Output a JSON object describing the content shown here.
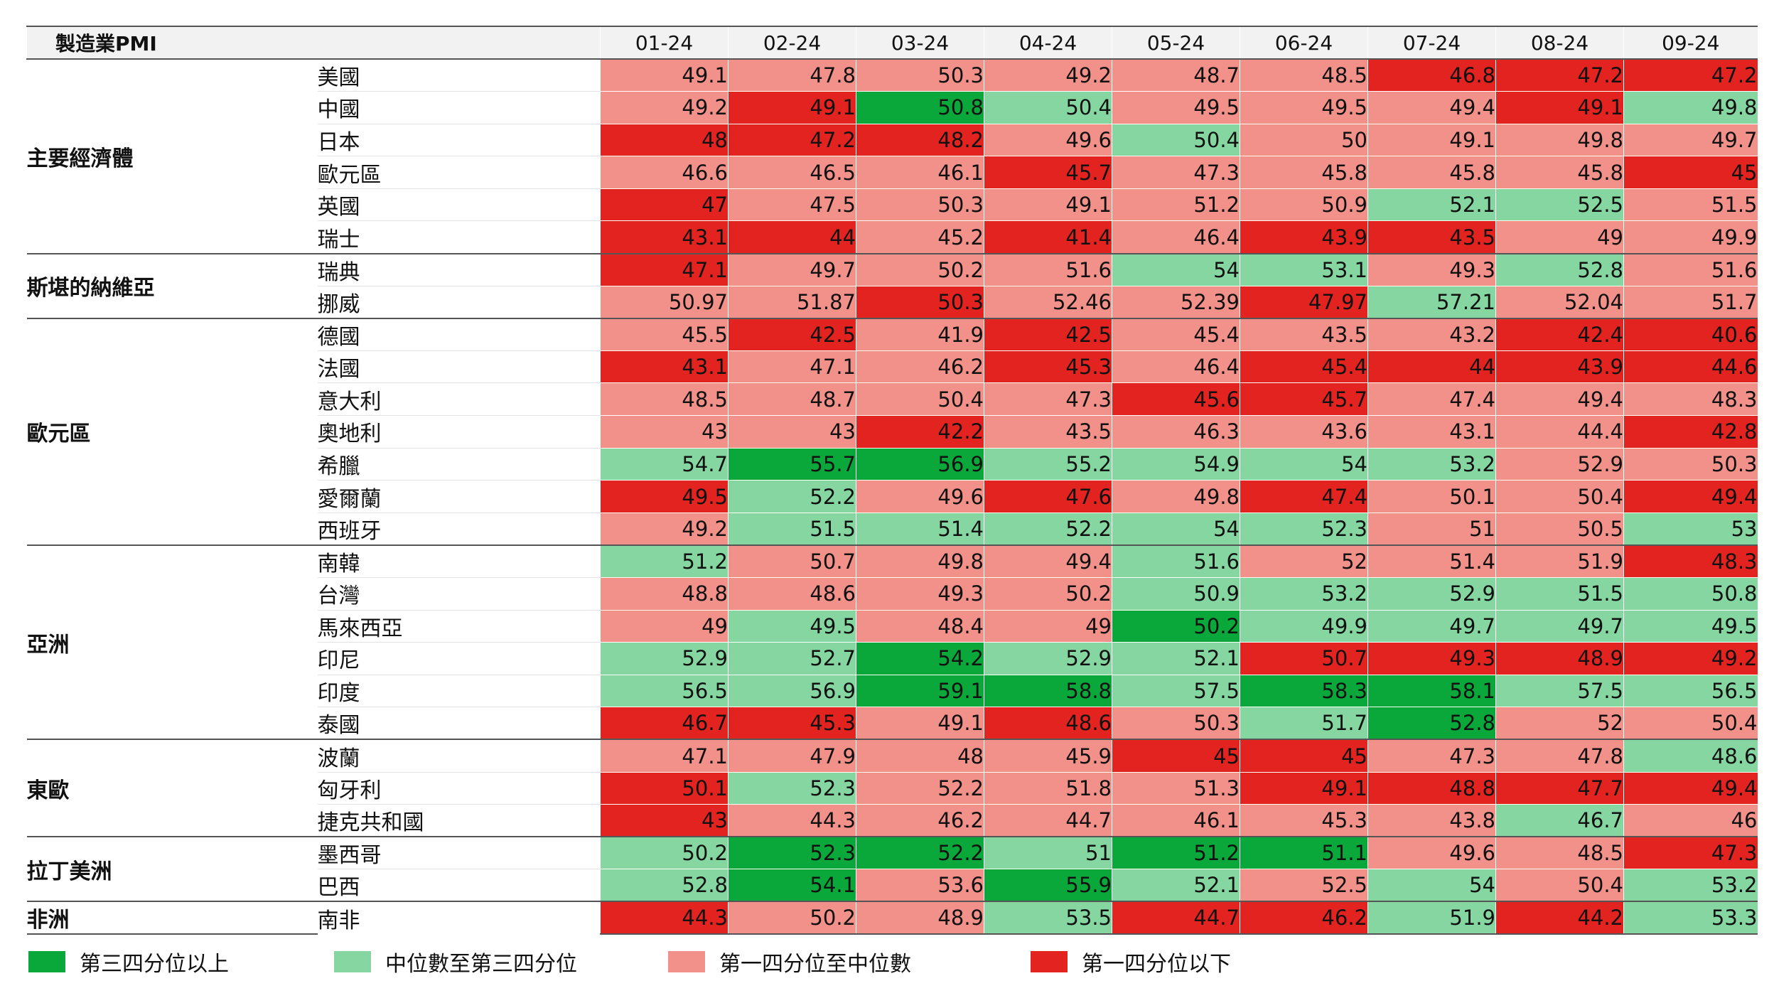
{
  "colors": {
    "q4": "#0aa73a",
    "q3": "#85d6a0",
    "q2": "#f2918a",
    "q1": "#e2231f"
  },
  "chart_data": {
    "type": "heatmap",
    "title": "製造業PMI",
    "columns": [
      "01-24",
      "02-24",
      "03-24",
      "04-24",
      "05-24",
      "06-24",
      "07-24",
      "08-24",
      "09-24"
    ],
    "groups": [
      {
        "name": "主要經濟體",
        "rows": [
          {
            "country": "美國",
            "values": [
              "49.1",
              "47.8",
              "50.3",
              "49.2",
              "48.7",
              "48.5",
              "46.8",
              "47.2",
              "47.2"
            ],
            "quartiles": [
              2,
              2,
              2,
              2,
              2,
              2,
              1,
              1,
              1
            ]
          },
          {
            "country": "中國",
            "values": [
              "49.2",
              "49.1",
              "50.8",
              "50.4",
              "49.5",
              "49.5",
              "49.4",
              "49.1",
              "49.8"
            ],
            "quartiles": [
              2,
              1,
              4,
              3,
              2,
              2,
              2,
              1,
              3
            ]
          },
          {
            "country": "日本",
            "values": [
              "48",
              "47.2",
              "48.2",
              "49.6",
              "50.4",
              "50",
              "49.1",
              "49.8",
              "49.7"
            ],
            "quartiles": [
              1,
              1,
              1,
              2,
              3,
              2,
              2,
              2,
              2
            ]
          },
          {
            "country": "歐元區",
            "values": [
              "46.6",
              "46.5",
              "46.1",
              "45.7",
              "47.3",
              "45.8",
              "45.8",
              "45.8",
              "45"
            ],
            "quartiles": [
              2,
              2,
              2,
              1,
              2,
              2,
              2,
              2,
              1
            ]
          },
          {
            "country": "英國",
            "values": [
              "47",
              "47.5",
              "50.3",
              "49.1",
              "51.2",
              "50.9",
              "52.1",
              "52.5",
              "51.5"
            ],
            "quartiles": [
              1,
              2,
              2,
              2,
              2,
              2,
              3,
              3,
              2
            ]
          },
          {
            "country": "瑞士",
            "values": [
              "43.1",
              "44",
              "45.2",
              "41.4",
              "46.4",
              "43.9",
              "43.5",
              "49",
              "49.9"
            ],
            "quartiles": [
              1,
              1,
              2,
              1,
              2,
              1,
              1,
              2,
              2
            ]
          }
        ]
      },
      {
        "name": "斯堪的納維亞",
        "rows": [
          {
            "country": "瑞典",
            "values": [
              "47.1",
              "49.7",
              "50.2",
              "51.6",
              "54",
              "53.1",
              "49.3",
              "52.8",
              "51.6"
            ],
            "quartiles": [
              1,
              2,
              2,
              2,
              3,
              3,
              2,
              3,
              2
            ]
          },
          {
            "country": "挪威",
            "values": [
              "50.97",
              "51.87",
              "50.3",
              "52.46",
              "52.39",
              "47.97",
              "57.21",
              "52.04",
              "51.7"
            ],
            "quartiles": [
              2,
              2,
              1,
              2,
              2,
              1,
              3,
              2,
              2
            ]
          }
        ]
      },
      {
        "name": "歐元區",
        "rows": [
          {
            "country": "德國",
            "values": [
              "45.5",
              "42.5",
              "41.9",
              "42.5",
              "45.4",
              "43.5",
              "43.2",
              "42.4",
              "40.6"
            ],
            "quartiles": [
              2,
              1,
              2,
              1,
              2,
              2,
              2,
              1,
              1
            ]
          },
          {
            "country": "法國",
            "values": [
              "43.1",
              "47.1",
              "46.2",
              "45.3",
              "46.4",
              "45.4",
              "44",
              "43.9",
              "44.6"
            ],
            "quartiles": [
              1,
              2,
              2,
              1,
              2,
              1,
              1,
              1,
              1
            ]
          },
          {
            "country": "意大利",
            "values": [
              "48.5",
              "48.7",
              "50.4",
              "47.3",
              "45.6",
              "45.7",
              "47.4",
              "49.4",
              "48.3"
            ],
            "quartiles": [
              2,
              2,
              2,
              2,
              1,
              1,
              2,
              2,
              2
            ]
          },
          {
            "country": "奧地利",
            "values": [
              "43",
              "43",
              "42.2",
              "43.5",
              "46.3",
              "43.6",
              "43.1",
              "44.4",
              "42.8"
            ],
            "quartiles": [
              2,
              2,
              1,
              2,
              2,
              2,
              2,
              2,
              1
            ]
          },
          {
            "country": "希臘",
            "values": [
              "54.7",
              "55.7",
              "56.9",
              "55.2",
              "54.9",
              "54",
              "53.2",
              "52.9",
              "50.3"
            ],
            "quartiles": [
              3,
              4,
              4,
              3,
              3,
              3,
              3,
              2,
              2
            ]
          },
          {
            "country": "愛爾蘭",
            "values": [
              "49.5",
              "52.2",
              "49.6",
              "47.6",
              "49.8",
              "47.4",
              "50.1",
              "50.4",
              "49.4"
            ],
            "quartiles": [
              1,
              3,
              2,
              1,
              2,
              1,
              2,
              2,
              1
            ]
          },
          {
            "country": "西班牙",
            "values": [
              "49.2",
              "51.5",
              "51.4",
              "52.2",
              "54",
              "52.3",
              "51",
              "50.5",
              "53"
            ],
            "quartiles": [
              2,
              3,
              3,
              3,
              3,
              3,
              2,
              2,
              3
            ]
          }
        ]
      },
      {
        "name": "亞洲",
        "rows": [
          {
            "country": "南韓",
            "values": [
              "51.2",
              "50.7",
              "49.8",
              "49.4",
              "51.6",
              "52",
              "51.4",
              "51.9",
              "48.3"
            ],
            "quartiles": [
              3,
              2,
              2,
              2,
              3,
              2,
              2,
              2,
              1
            ]
          },
          {
            "country": "台灣",
            "values": [
              "48.8",
              "48.6",
              "49.3",
              "50.2",
              "50.9",
              "53.2",
              "52.9",
              "51.5",
              "50.8"
            ],
            "quartiles": [
              2,
              2,
              2,
              2,
              3,
              3,
              3,
              3,
              3
            ]
          },
          {
            "country": "馬來西亞",
            "values": [
              "49",
              "49.5",
              "48.4",
              "49",
              "50.2",
              "49.9",
              "49.7",
              "49.7",
              "49.5"
            ],
            "quartiles": [
              2,
              3,
              2,
              2,
              4,
              3,
              3,
              3,
              3
            ]
          },
          {
            "country": "印尼",
            "values": [
              "52.9",
              "52.7",
              "54.2",
              "52.9",
              "52.1",
              "50.7",
              "49.3",
              "48.9",
              "49.2"
            ],
            "quartiles": [
              3,
              3,
              4,
              3,
              3,
              1,
              1,
              1,
              1
            ]
          },
          {
            "country": "印度",
            "values": [
              "56.5",
              "56.9",
              "59.1",
              "58.8",
              "57.5",
              "58.3",
              "58.1",
              "57.5",
              "56.5"
            ],
            "quartiles": [
              3,
              3,
              4,
              4,
              3,
              4,
              4,
              3,
              3
            ]
          },
          {
            "country": "泰國",
            "values": [
              "46.7",
              "45.3",
              "49.1",
              "48.6",
              "50.3",
              "51.7",
              "52.8",
              "52",
              "50.4"
            ],
            "quartiles": [
              1,
              1,
              2,
              1,
              2,
              3,
              4,
              2,
              2
            ]
          }
        ]
      },
      {
        "name": "東歐",
        "rows": [
          {
            "country": "波蘭",
            "values": [
              "47.1",
              "47.9",
              "48",
              "45.9",
              "45",
              "45",
              "47.3",
              "47.8",
              "48.6"
            ],
            "quartiles": [
              2,
              2,
              2,
              2,
              1,
              1,
              2,
              2,
              3
            ]
          },
          {
            "country": "匈牙利",
            "values": [
              "50.1",
              "52.3",
              "52.2",
              "51.8",
              "51.3",
              "49.1",
              "48.8",
              "47.7",
              "49.4"
            ],
            "quartiles": [
              1,
              3,
              2,
              2,
              2,
              1,
              1,
              1,
              1
            ]
          },
          {
            "country": "捷克共和國",
            "values": [
              "43",
              "44.3",
              "46.2",
              "44.7",
              "46.1",
              "45.3",
              "43.8",
              "46.7",
              "46"
            ],
            "quartiles": [
              1,
              2,
              2,
              2,
              2,
              2,
              2,
              3,
              2
            ]
          }
        ]
      },
      {
        "name": "拉丁美洲",
        "rows": [
          {
            "country": "墨西哥",
            "values": [
              "50.2",
              "52.3",
              "52.2",
              "51",
              "51.2",
              "51.1",
              "49.6",
              "48.5",
              "47.3"
            ],
            "quartiles": [
              3,
              4,
              4,
              3,
              4,
              4,
              2,
              2,
              1
            ]
          },
          {
            "country": "巴西",
            "values": [
              "52.8",
              "54.1",
              "53.6",
              "55.9",
              "52.1",
              "52.5",
              "54",
              "50.4",
              "53.2"
            ],
            "quartiles": [
              3,
              4,
              2,
              4,
              3,
              2,
              3,
              2,
              3
            ]
          }
        ]
      },
      {
        "name": "非洲",
        "rows": [
          {
            "country": "南非",
            "values": [
              "44.3",
              "50.2",
              "48.9",
              "53.5",
              "44.7",
              "46.2",
              "51.9",
              "44.2",
              "53.3"
            ],
            "quartiles": [
              1,
              2,
              2,
              3,
              1,
              1,
              3,
              1,
              3
            ]
          }
        ]
      }
    ],
    "legend": [
      {
        "label": "第三四分位以上",
        "quartile": 4
      },
      {
        "label": "中位數至第三四分位",
        "quartile": 3
      },
      {
        "label": "第一四分位至中位數",
        "quartile": 2
      },
      {
        "label": "第一四分位以下",
        "quartile": 1
      }
    ]
  }
}
